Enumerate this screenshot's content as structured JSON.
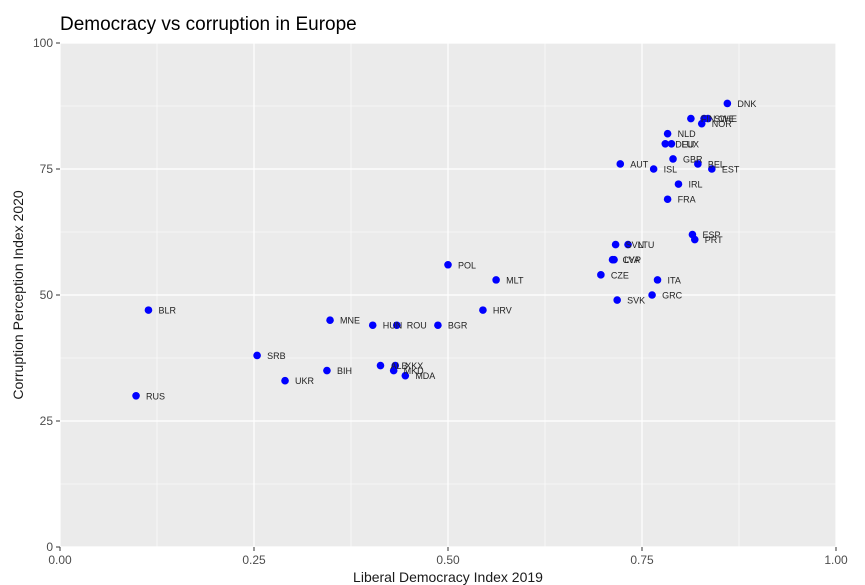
{
  "chart_data": {
    "type": "scatter",
    "title": "Democracy vs corruption in Europe",
    "xlabel": "Liberal Democracy Index 2019",
    "ylabel": "Corruption Perception Index 2020",
    "xlim": [
      0,
      1
    ],
    "ylim": [
      0,
      100
    ],
    "x_ticks": [
      0,
      0.25,
      0.5,
      0.75,
      1
    ],
    "x_tick_labels": [
      "0.00",
      "0.25",
      "0.50",
      "0.75",
      "1.00"
    ],
    "y_ticks": [
      0,
      25,
      50,
      75,
      100
    ],
    "y_tick_labels": [
      "0",
      "25",
      "50",
      "75",
      "100"
    ],
    "grid": true,
    "point_color": "#0000ff",
    "panel_color": "#ebebeb",
    "points": [
      {
        "label": "DNK",
        "x": 0.86,
        "y": 88
      },
      {
        "label": "FIN",
        "x": 0.813,
        "y": 85
      },
      {
        "label": "SWE",
        "x": 0.83,
        "y": 85
      },
      {
        "label": "CHE",
        "x": 0.835,
        "y": 85
      },
      {
        "label": "NOR",
        "x": 0.827,
        "y": 84
      },
      {
        "label": "NLD",
        "x": 0.783,
        "y": 82
      },
      {
        "label": "DEU",
        "x": 0.78,
        "y": 80
      },
      {
        "label": "LUX",
        "x": 0.788,
        "y": 80
      },
      {
        "label": "GBR",
        "x": 0.79,
        "y": 77
      },
      {
        "label": "BEL",
        "x": 0.822,
        "y": 76
      },
      {
        "label": "AUT",
        "x": 0.722,
        "y": 76
      },
      {
        "label": "ISL",
        "x": 0.765,
        "y": 75
      },
      {
        "label": "EST",
        "x": 0.84,
        "y": 75
      },
      {
        "label": "IRL",
        "x": 0.797,
        "y": 72
      },
      {
        "label": "FRA",
        "x": 0.783,
        "y": 69
      },
      {
        "label": "ESP",
        "x": 0.815,
        "y": 62
      },
      {
        "label": "PRT",
        "x": 0.818,
        "y": 61
      },
      {
        "label": "SVN",
        "x": 0.716,
        "y": 60
      },
      {
        "label": "LTU",
        "x": 0.732,
        "y": 60
      },
      {
        "label": "CYP",
        "x": 0.712,
        "y": 57
      },
      {
        "label": "LVA",
        "x": 0.714,
        "y": 57
      },
      {
        "label": "CZE",
        "x": 0.697,
        "y": 54
      },
      {
        "label": "ITA",
        "x": 0.77,
        "y": 53
      },
      {
        "label": "GRC",
        "x": 0.763,
        "y": 50
      },
      {
        "label": "SVK",
        "x": 0.718,
        "y": 49
      },
      {
        "label": "POL",
        "x": 0.5,
        "y": 56
      },
      {
        "label": "MLT",
        "x": 0.562,
        "y": 53
      },
      {
        "label": "HRV",
        "x": 0.545,
        "y": 47
      },
      {
        "label": "BLR",
        "x": 0.114,
        "y": 47
      },
      {
        "label": "MNE",
        "x": 0.348,
        "y": 45
      },
      {
        "label": "HUN",
        "x": 0.403,
        "y": 44
      },
      {
        "label": "ROU",
        "x": 0.434,
        "y": 44
      },
      {
        "label": "BGR",
        "x": 0.487,
        "y": 44
      },
      {
        "label": "SRB",
        "x": 0.254,
        "y": 38
      },
      {
        "label": "ALB",
        "x": 0.413,
        "y": 36
      },
      {
        "label": "MKD",
        "x": 0.43,
        "y": 35
      },
      {
        "label": "XKX",
        "x": 0.432,
        "y": 36
      },
      {
        "label": "BIH",
        "x": 0.344,
        "y": 35
      },
      {
        "label": "UKR",
        "x": 0.29,
        "y": 33
      },
      {
        "label": "MDA",
        "x": 0.445,
        "y": 34
      },
      {
        "label": "RUS",
        "x": 0.098,
        "y": 30
      }
    ]
  }
}
